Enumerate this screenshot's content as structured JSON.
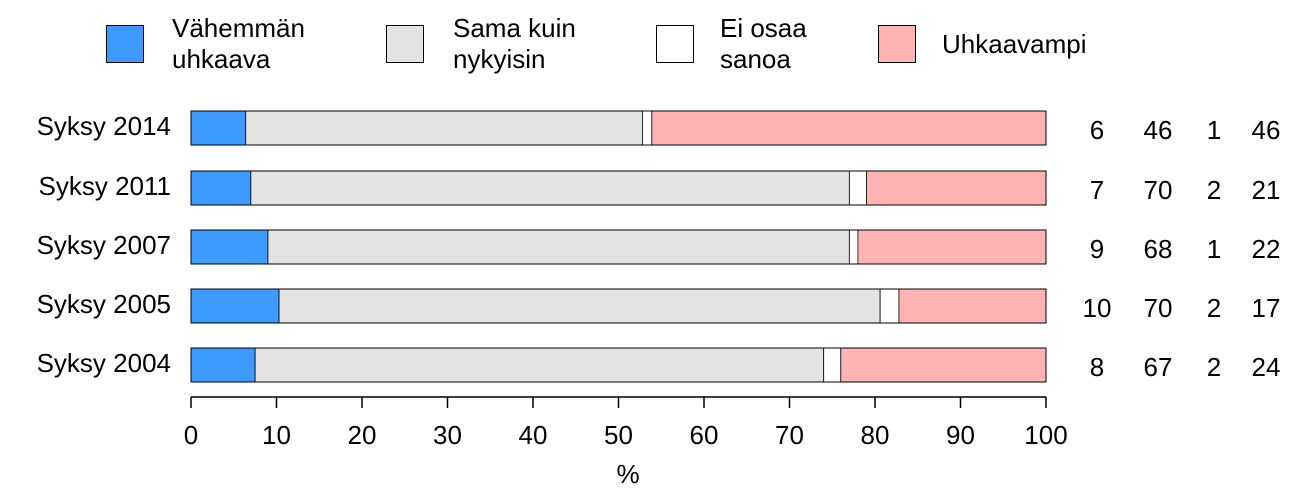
{
  "chart_data": {
    "type": "stacked-barh",
    "categories": [
      "Syksy 2014",
      "Syksy 2011",
      "Syksy 2007",
      "Syksy 2005",
      "Syksy 2004"
    ],
    "series": [
      {
        "name": "Vähemmän uhkaava",
        "color": "#3d9bff",
        "values": [
          6.4,
          7.0,
          9.0,
          10.3,
          7.5
        ],
        "value_labels": [
          "6",
          "7",
          "9",
          "10",
          "8"
        ]
      },
      {
        "name": "Sama kuin nykyisin",
        "color": "#e3e3e3",
        "values": [
          46.4,
          70.0,
          68.0,
          70.3,
          66.5
        ],
        "value_labels": [
          "46",
          "70",
          "68",
          "70",
          "67"
        ]
      },
      {
        "name": "Ei osaa sanoa",
        "color": "#ffffff",
        "values": [
          1.1,
          2.0,
          1.0,
          2.2,
          2.0
        ],
        "value_labels": [
          "1",
          "2",
          "1",
          "2",
          "2"
        ]
      },
      {
        "name": "Uhkaavampi",
        "color": "#ffb3b3",
        "values": [
          46.1,
          21.0,
          22.0,
          17.2,
          24.0
        ],
        "value_labels": [
          "46",
          "21",
          "22",
          "17",
          "24"
        ]
      }
    ],
    "xlabel": "%",
    "xlim": [
      0,
      100
    ],
    "xticks": [
      0,
      10,
      20,
      30,
      40,
      50,
      60,
      70,
      80,
      90,
      100
    ]
  }
}
